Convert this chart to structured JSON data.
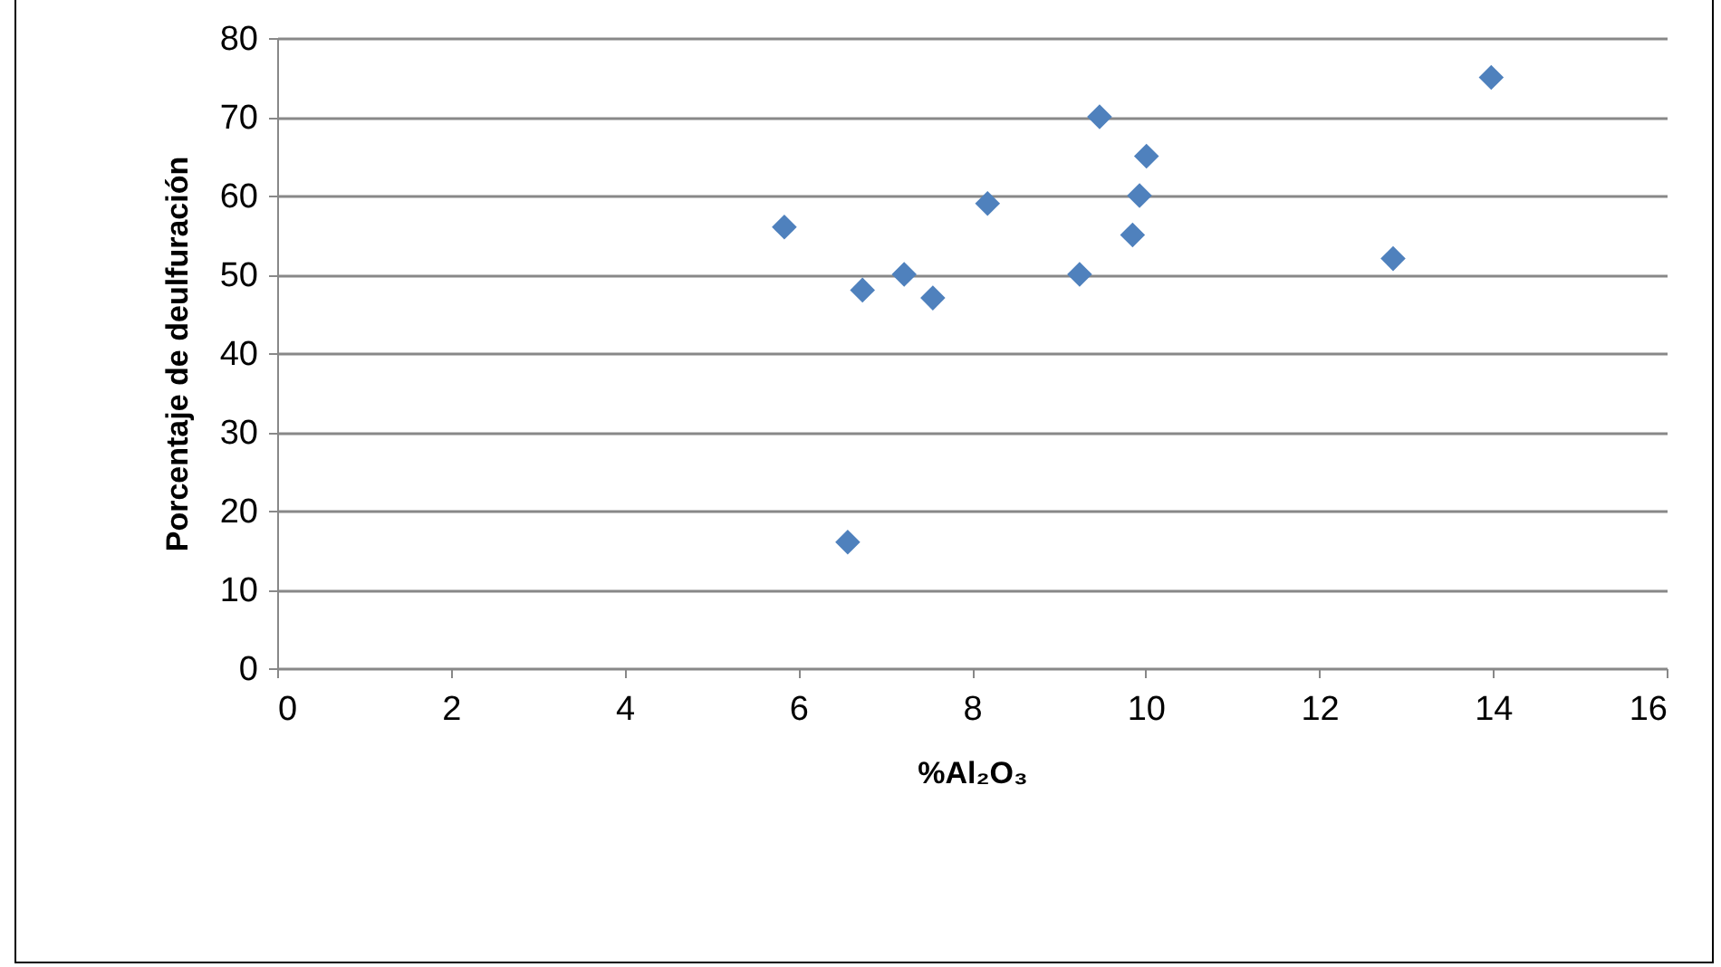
{
  "chart_data": {
    "type": "scatter",
    "xlabel": "%Al₂O₃",
    "ylabel": "Porcentaje de deulfuración",
    "x": [
      5.84,
      6.74,
      6.57,
      7.22,
      7.55,
      8.18,
      9.24,
      9.47,
      9.85,
      9.93,
      10.01,
      12.85,
      13.98
    ],
    "series": [
      {
        "color": "#4f81bd",
        "values": [
          56,
          48,
          16,
          50,
          47,
          59,
          50,
          70,
          55,
          60,
          65,
          52,
          75
        ]
      }
    ],
    "xlim": [
      0,
      16
    ],
    "xticks": [
      0,
      2,
      4,
      6,
      8,
      10,
      12,
      14,
      16
    ],
    "ylim": [
      0,
      80
    ],
    "yticks": [
      0,
      10,
      20,
      30,
      40,
      50,
      60,
      70,
      80
    ],
    "grid": "y",
    "marker": "diamond"
  }
}
